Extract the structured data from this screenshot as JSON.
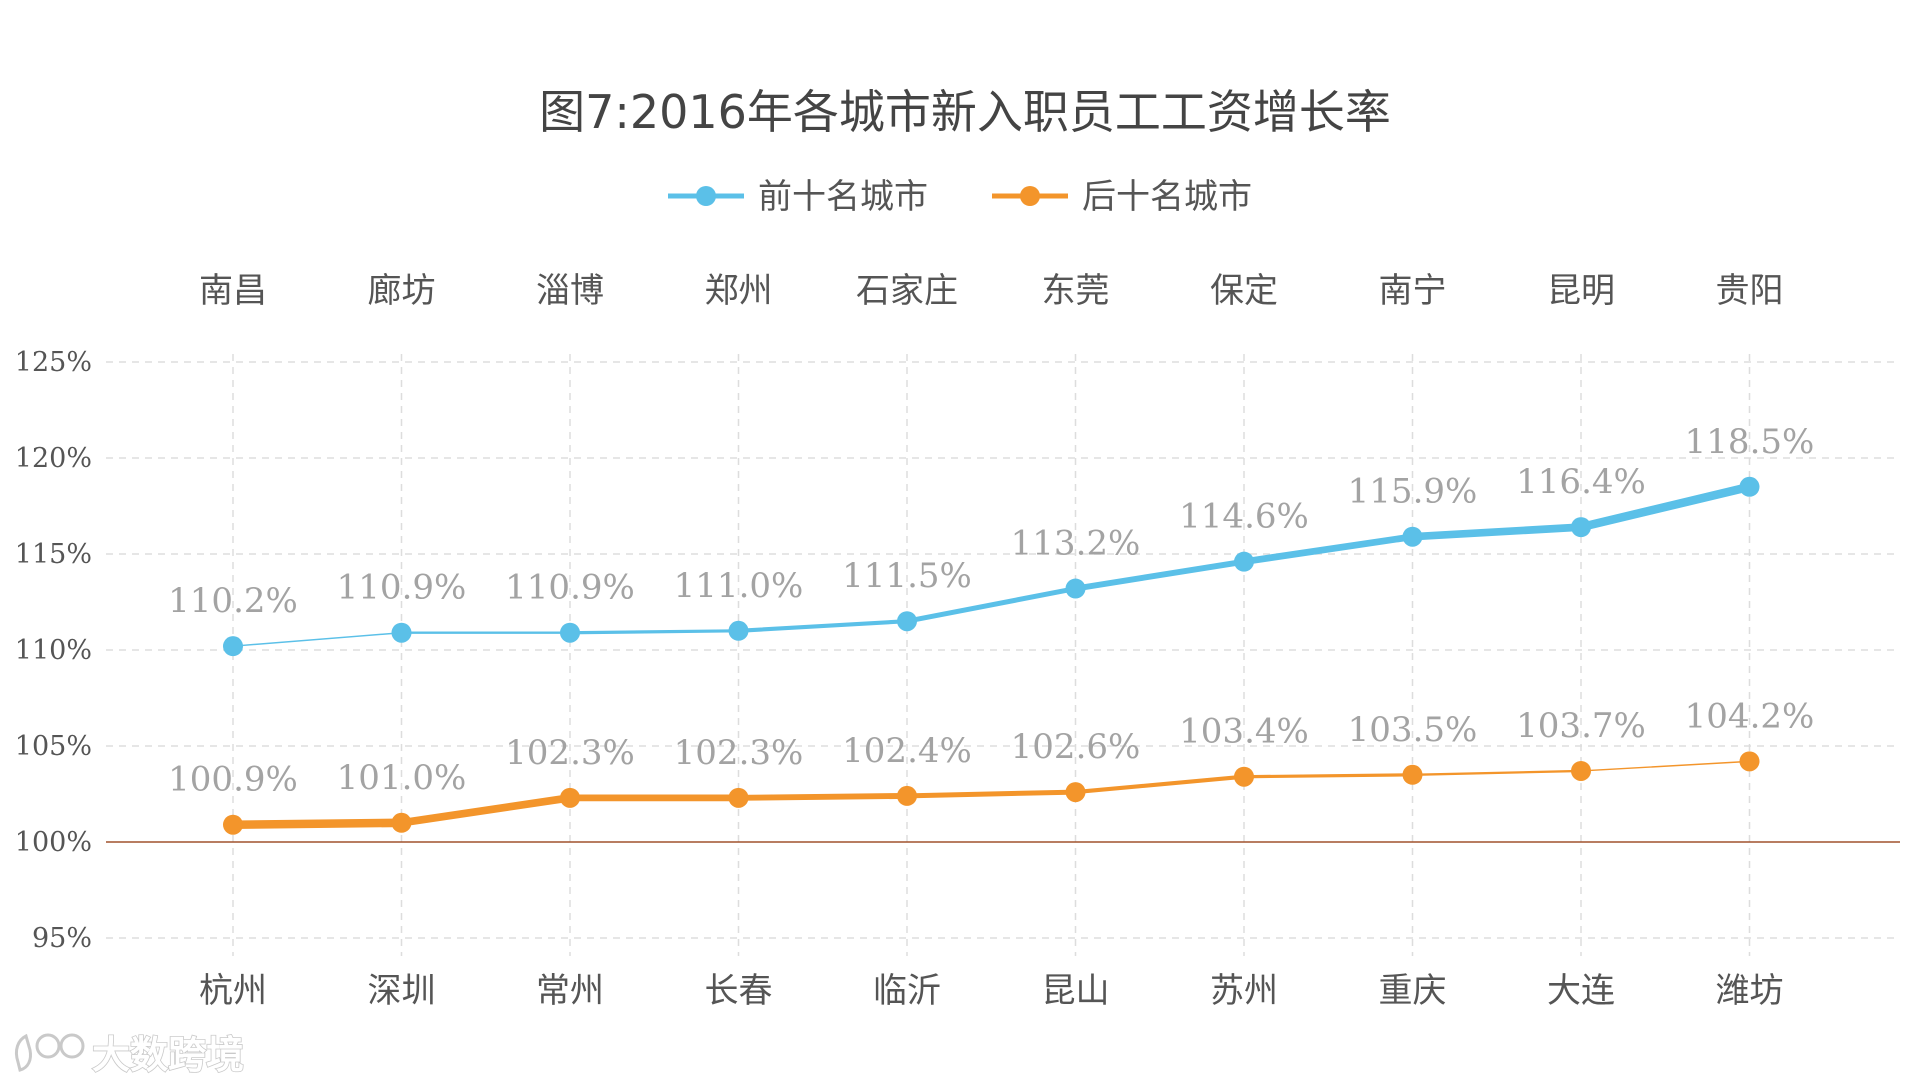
{
  "chart_data": {
    "type": "line",
    "title": "图7:2016年各城市新入职员工工资增长率",
    "top_categories": [
      "南昌",
      "廊坊",
      "淄博",
      "郑州",
      "石家庄",
      "东莞",
      "保定",
      "南宁",
      "昆明",
      "贵阳"
    ],
    "bottom_categories": [
      "杭州",
      "深圳",
      "常州",
      "长春",
      "临沂",
      "昆山",
      "苏州",
      "重庆",
      "大连",
      "潍坊"
    ],
    "series": [
      {
        "name": "前十名城市",
        "color": "#5bc0e8",
        "values": [
          110.2,
          110.9,
          110.9,
          111.0,
          111.5,
          113.2,
          114.6,
          115.9,
          116.4,
          118.5
        ],
        "labels": [
          "110.2%",
          "110.9%",
          "110.9%",
          "111.0%",
          "111.5%",
          "113.2%",
          "114.6%",
          "115.9%",
          "116.4%",
          "118.5%"
        ]
      },
      {
        "name": "后十名城市",
        "color": "#f3952b",
        "values": [
          100.9,
          101.0,
          102.3,
          102.3,
          102.4,
          102.6,
          103.4,
          103.5,
          103.7,
          104.2
        ],
        "labels": [
          "100.9%",
          "101.0%",
          "102.3%",
          "102.3%",
          "102.4%",
          "102.6%",
          "103.4%",
          "103.5%",
          "103.7%",
          "104.2%"
        ]
      }
    ],
    "y_ticks": [
      95,
      100,
      105,
      110,
      115,
      120,
      125
    ],
    "y_tick_labels": [
      "95%",
      "100%",
      "105%",
      "110%",
      "115%",
      "120%",
      "125%"
    ],
    "ylim": [
      95,
      125
    ],
    "baseline": 100,
    "baseline_color": "#a0522d",
    "grid": true,
    "legend_position": "top-center"
  },
  "watermark": "大数跨境"
}
